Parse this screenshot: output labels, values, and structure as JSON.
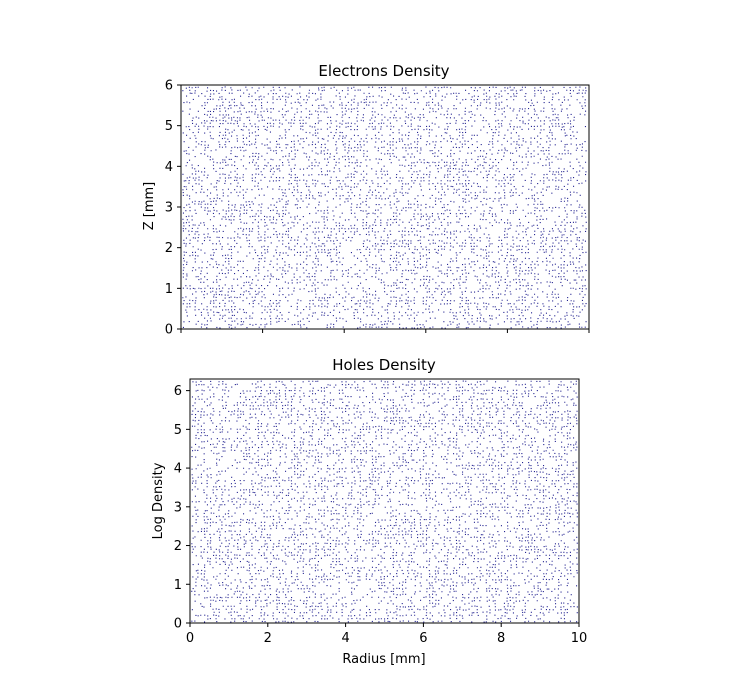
{
  "chart_data": [
    {
      "type": "scatter",
      "title": "Electrons Density",
      "xlabel": "",
      "ylabel": "Z [mm]",
      "xlim": [
        0,
        10
      ],
      "ylim": [
        0,
        6
      ],
      "xticks": [
        0,
        2,
        4,
        6,
        8,
        10
      ],
      "xtick_labels_visible": false,
      "yticks": [
        0,
        1,
        2,
        3,
        4,
        5,
        6
      ],
      "point_color": "#00007f",
      "grid": false,
      "legend": "none",
      "distribution": "dense uniform field of tiny points covering the full area"
    },
    {
      "type": "scatter",
      "title": "Holes Density",
      "xlabel": "Radius [mm]",
      "ylabel": "Log Density",
      "xlim": [
        0,
        10
      ],
      "ylim": [
        0,
        6.3
      ],
      "xticks": [
        0,
        2,
        4,
        6,
        8,
        10
      ],
      "xtick_labels_visible": true,
      "yticks": [
        0,
        1,
        2,
        3,
        4,
        5,
        6
      ],
      "point_color": "#00007f",
      "grid": false,
      "legend": "none",
      "distribution": "dense uniform field of tiny points covering the full area"
    }
  ]
}
